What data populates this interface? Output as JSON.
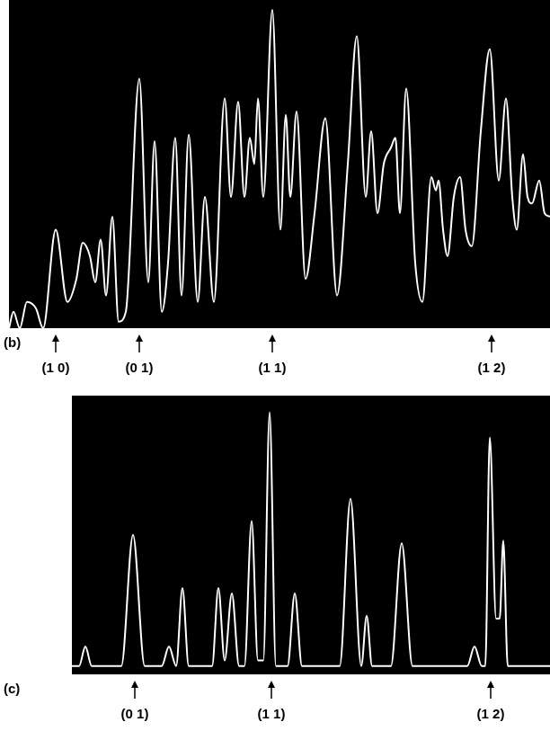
{
  "chart_data": [
    {
      "type": "line",
      "title": "(b)",
      "color": "#ffffff",
      "grid": false,
      "tick_labels": false,
      "xlim": [
        10,
        612
      ],
      "ylim": [
        0,
        100
      ],
      "x": [
        10,
        15,
        22,
        30,
        40,
        48,
        62,
        75,
        85,
        92,
        100,
        106,
        112,
        118,
        125,
        132,
        140,
        155,
        165,
        172,
        180,
        187,
        195,
        202,
        210,
        220,
        228,
        238,
        250,
        257,
        265,
        272,
        278,
        283,
        287,
        293,
        303,
        312,
        318,
        323,
        330,
        340,
        350,
        362,
        375,
        387,
        397,
        407,
        413,
        420,
        427,
        435,
        440,
        445,
        452,
        462,
        470,
        480,
        485,
        488,
        493,
        498,
        505,
        512,
        518,
        525,
        535,
        545,
        555,
        563,
        570,
        575,
        582,
        587,
        592,
        600,
        606,
        612
      ],
      "values": [
        0,
        5,
        0,
        8,
        6,
        0,
        30,
        8,
        15,
        26,
        22,
        14,
        27,
        10,
        34,
        2,
        5,
        76,
        14,
        57,
        5,
        20,
        58,
        10,
        59,
        8,
        40,
        8,
        70,
        40,
        69,
        40,
        58,
        50,
        70,
        40,
        97,
        30,
        65,
        40,
        66,
        15,
        35,
        64,
        10,
        50,
        89,
        40,
        60,
        35,
        50,
        55,
        58,
        35,
        73,
        20,
        8,
        46,
        42,
        45,
        30,
        22,
        40,
        46,
        30,
        25,
        60,
        85,
        45,
        70,
        40,
        30,
        53,
        40,
        38,
        45,
        35,
        34
      ],
      "annotations": [
        {
          "text": "(1 0)",
          "x": 62
        },
        {
          "text": "(0 1)",
          "x": 155
        },
        {
          "text": "(1 1)",
          "x": 303
        },
        {
          "text": "(1 2)",
          "x": 547
        }
      ]
    },
    {
      "type": "line",
      "title": "(c)",
      "color": "#ffffff",
      "grid": false,
      "tick_labels": false,
      "xlim": [
        80,
        612
      ],
      "ylim": [
        0,
        100
      ],
      "x": [
        80,
        88,
        95,
        102,
        135,
        148,
        161,
        180,
        188,
        196,
        203,
        210,
        236,
        243,
        250,
        258,
        266,
        272,
        280,
        287,
        293,
        300,
        307,
        320,
        328,
        336,
        378,
        390,
        402,
        408,
        414,
        435,
        447,
        459,
        520,
        528,
        536,
        540,
        545,
        552,
        556,
        560,
        565,
        575,
        590,
        612
      ],
      "values": [
        3,
        3,
        10,
        3,
        3,
        50,
        3,
        3,
        10,
        3,
        31,
        3,
        3,
        31,
        5,
        29,
        3,
        3,
        55,
        5,
        5,
        94,
        3,
        3,
        29,
        3,
        3,
        63,
        3,
        21,
        3,
        3,
        47,
        3,
        3,
        10,
        3,
        3,
        85,
        20,
        20,
        48,
        3,
        3,
        3,
        3
      ],
      "annotations": [
        {
          "text": "(0 1)",
          "x": 150
        },
        {
          "text": "(1 1)",
          "x": 302
        },
        {
          "text": "(1 2)",
          "x": 546
        }
      ]
    }
  ]
}
